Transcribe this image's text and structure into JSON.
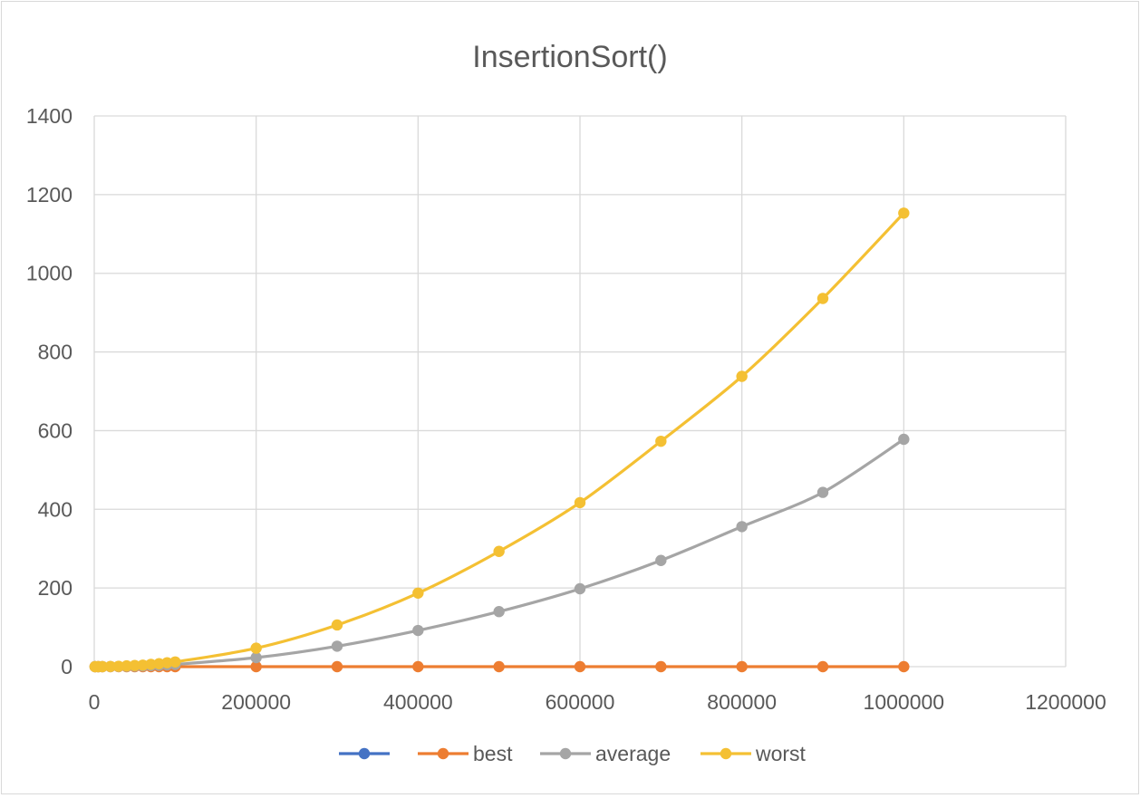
{
  "chart_data": {
    "type": "line",
    "title": "InsertionSort()",
    "xlabel": "",
    "ylabel": "",
    "xlim": [
      0,
      1200000
    ],
    "ylim": [
      0,
      1400
    ],
    "x_ticks": [
      0,
      200000,
      400000,
      600000,
      800000,
      1000000,
      1200000
    ],
    "y_ticks": [
      0,
      200,
      400,
      600,
      800,
      1000,
      1200,
      1400
    ],
    "x_tick_labels": [
      "0",
      "200000",
      "400000",
      "600000",
      "800000",
      "1000000",
      "1200000"
    ],
    "y_tick_labels": [
      "0",
      "200",
      "400",
      "600",
      "800",
      "1000",
      "1200",
      "1400"
    ],
    "grid": true,
    "legend_position": "bottom",
    "series": [
      {
        "name": "",
        "color": "#4472c4",
        "x": [],
        "y": []
      },
      {
        "name": "best",
        "color": "#ed7d31",
        "x": [
          1000,
          5000,
          10000,
          20000,
          30000,
          40000,
          50000,
          60000,
          70000,
          80000,
          90000,
          100000,
          200000,
          300000,
          400000,
          500000,
          600000,
          700000,
          800000,
          900000,
          1000000
        ],
        "y": [
          0,
          0,
          0,
          0,
          0,
          0,
          0,
          0,
          0,
          0,
          0,
          0,
          0,
          0,
          0,
          0,
          0,
          0,
          0,
          0,
          0
        ]
      },
      {
        "name": "average",
        "color": "#a5a5a5",
        "x": [
          1000,
          5000,
          10000,
          20000,
          30000,
          40000,
          50000,
          60000,
          70000,
          80000,
          90000,
          100000,
          200000,
          300000,
          400000,
          500000,
          600000,
          700000,
          800000,
          900000,
          1000000
        ],
        "y": [
          0,
          0,
          0.1,
          0.2,
          0.5,
          0.9,
          1.4,
          2,
          2.8,
          3.6,
          4.6,
          5.7,
          23,
          52,
          92,
          140,
          198,
          270,
          356,
          443,
          578
        ]
      },
      {
        "name": "worst",
        "color": "#f4c033",
        "x": [
          1000,
          5000,
          10000,
          20000,
          30000,
          40000,
          50000,
          60000,
          70000,
          80000,
          90000,
          100000,
          200000,
          300000,
          400000,
          500000,
          600000,
          700000,
          800000,
          900000,
          1000000
        ],
        "y": [
          0,
          0,
          0.1,
          0.5,
          1,
          2,
          3,
          4,
          6,
          7.5,
          10,
          12,
          47,
          106,
          187,
          293,
          417,
          573,
          738,
          936,
          1153
        ]
      }
    ]
  }
}
